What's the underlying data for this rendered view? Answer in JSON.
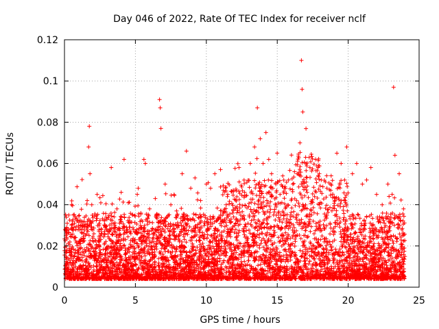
{
  "chart_data": {
    "type": "scatter",
    "title": "Day 046 of 2022, Rate Of TEC Index for receiver nclf",
    "xlabel": "GPS time / hours",
    "ylabel": "ROTI / TECUs",
    "xlim": [
      0,
      25
    ],
    "ylim": [
      0,
      0.12
    ],
    "xticks": [
      0,
      5,
      10,
      15,
      20,
      25
    ],
    "xtick_labels": [
      "0",
      "5",
      "10",
      "15",
      "20",
      "25"
    ],
    "yticks": [
      0,
      0.02,
      0.04,
      0.06,
      0.08,
      0.1,
      0.12
    ],
    "ytick_labels": [
      "0",
      "0.02",
      "0.04",
      "0.06",
      "0.08",
      "0.1",
      "0.12"
    ],
    "grid": true,
    "marker": "+",
    "color": "#ff0000",
    "series": [
      {
        "name": "ROTI",
        "x": [
          0.1,
          0.3,
          0.5,
          0.8,
          1.0,
          1.3,
          1.6,
          1.7,
          1.75,
          1.8,
          2.0,
          2.3,
          2.6,
          3.0,
          3.3,
          3.7,
          4.0,
          4.2,
          4.5,
          4.8,
          5.2,
          5.6,
          5.7,
          6.0,
          6.4,
          6.7,
          6.75,
          6.8,
          7.1,
          7.5,
          7.9,
          8.3,
          8.6,
          8.9,
          9.2,
          9.6,
          10.0,
          10.3,
          10.6,
          11.0,
          11.4,
          11.9,
          12.3,
          12.7,
          13.1,
          13.4,
          13.6,
          13.8,
          14.0,
          14.2,
          14.4,
          14.6,
          14.9,
          15.2,
          15.5,
          15.8,
          16.1,
          16.4,
          16.6,
          16.7,
          16.75,
          16.8,
          17.0,
          17.3,
          17.7,
          18.1,
          18.5,
          18.8,
          19.2,
          19.5,
          19.9,
          20.3,
          20.6,
          21.0,
          21.3,
          21.6,
          22.0,
          22.4,
          22.8,
          23.1,
          23.2,
          23.3,
          23.6,
          23.9,
          0.2,
          0.6,
          1.2,
          2.2,
          2.8,
          3.5,
          4.4,
          5.0,
          6.2,
          7.3,
          8.1,
          9.0,
          10.8,
          11.6,
          12.5,
          13.3,
          14.8,
          15.6,
          16.3,
          17.5,
          18.3,
          19.0,
          20.0,
          20.8,
          21.8,
          22.6,
          23.5,
          3.9,
          9.8,
          12.1,
          15.0,
          18.9,
          21.1,
          23.8
        ],
        "values": [
          0.025,
          0.035,
          0.04,
          0.028,
          0.03,
          0.022,
          0.042,
          0.068,
          0.078,
          0.055,
          0.032,
          0.045,
          0.028,
          0.033,
          0.058,
          0.038,
          0.046,
          0.062,
          0.041,
          0.035,
          0.048,
          0.062,
          0.06,
          0.038,
          0.043,
          0.091,
          0.087,
          0.077,
          0.05,
          0.04,
          0.037,
          0.055,
          0.066,
          0.048,
          0.053,
          0.042,
          0.05,
          0.048,
          0.055,
          0.035,
          0.04,
          0.047,
          0.058,
          0.046,
          0.06,
          0.068,
          0.087,
          0.072,
          0.06,
          0.075,
          0.062,
          0.055,
          0.05,
          0.045,
          0.048,
          0.052,
          0.05,
          0.055,
          0.07,
          0.11,
          0.096,
          0.085,
          0.063,
          0.058,
          0.062,
          0.052,
          0.048,
          0.054,
          0.065,
          0.06,
          0.068,
          0.055,
          0.06,
          0.05,
          0.052,
          0.058,
          0.045,
          0.04,
          0.05,
          0.045,
          0.097,
          0.064,
          0.055,
          0.038,
          0.012,
          0.008,
          0.01,
          0.015,
          0.012,
          0.01,
          0.009,
          0.014,
          0.011,
          0.013,
          0.01,
          0.012,
          0.014,
          0.013,
          0.016,
          0.02,
          0.018,
          0.022,
          0.025,
          0.02,
          0.017,
          0.016,
          0.018,
          0.014,
          0.012,
          0.013,
          0.011,
          0.02,
          0.018,
          0.024,
          0.03,
          0.022,
          0.019,
          0.01
        ]
      }
    ]
  }
}
